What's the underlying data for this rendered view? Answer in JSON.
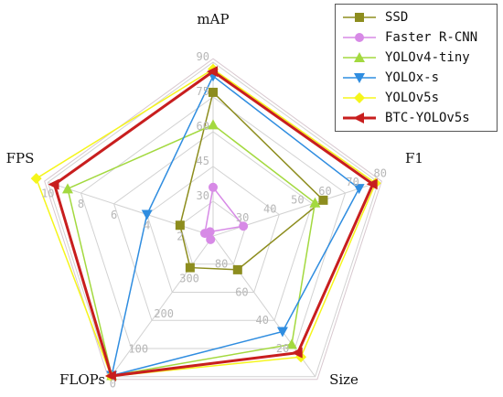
{
  "chart_data": {
    "type": "radar",
    "axes": [
      {
        "name": "mAP",
        "ticks": [
          "30",
          "45",
          "60",
          "75",
          "90"
        ],
        "min": 15,
        "max": 90
      },
      {
        "name": "F1",
        "ticks": [
          "30",
          "40",
          "50",
          "60",
          "70",
          "80"
        ],
        "min": 20,
        "max": 80
      },
      {
        "name": "Size",
        "ticks": [
          "80",
          "60",
          "40",
          "20"
        ],
        "min": 100,
        "max": 0
      },
      {
        "name": "FLOPs",
        "ticks": [
          "300",
          "200",
          "100",
          "0"
        ],
        "min": 400,
        "max": 0
      },
      {
        "name": "FPS",
        "ticks": [
          "2",
          "4",
          "6",
          "8",
          "10"
        ],
        "min": 0,
        "max": 10
      }
    ],
    "series": [
      {
        "name": "SSD",
        "values": [
          77,
          60,
          76,
          310,
          2
        ],
        "color": "#8d8d1e",
        "marker": "square"
      },
      {
        "name": "Faster R-CNN",
        "values": [
          36,
          31,
          103,
          390,
          0.5
        ],
        "color": "#d78ae6",
        "marker": "circle"
      },
      {
        "name": "YOLOv4-tiny",
        "values": [
          63,
          57,
          23,
          3,
          8.8
        ],
        "color": "#a3d93f",
        "marker": "triangle-up"
      },
      {
        "name": "YOLOx-s",
        "values": [
          84,
          73,
          32,
          3,
          4
        ],
        "color": "#2f8de0",
        "marker": "triangle-down"
      },
      {
        "name": "YOLOv5s",
        "values": [
          87,
          79,
          14,
          1,
          10.7
        ],
        "color": "#f5f51b",
        "marker": "diamond"
      },
      {
        "name": "BTC-YOLOv5s",
        "values": [
          86,
          78,
          17,
          2,
          9.6
        ],
        "color": "#c81e1e",
        "marker": "triangle-left"
      }
    ]
  }
}
